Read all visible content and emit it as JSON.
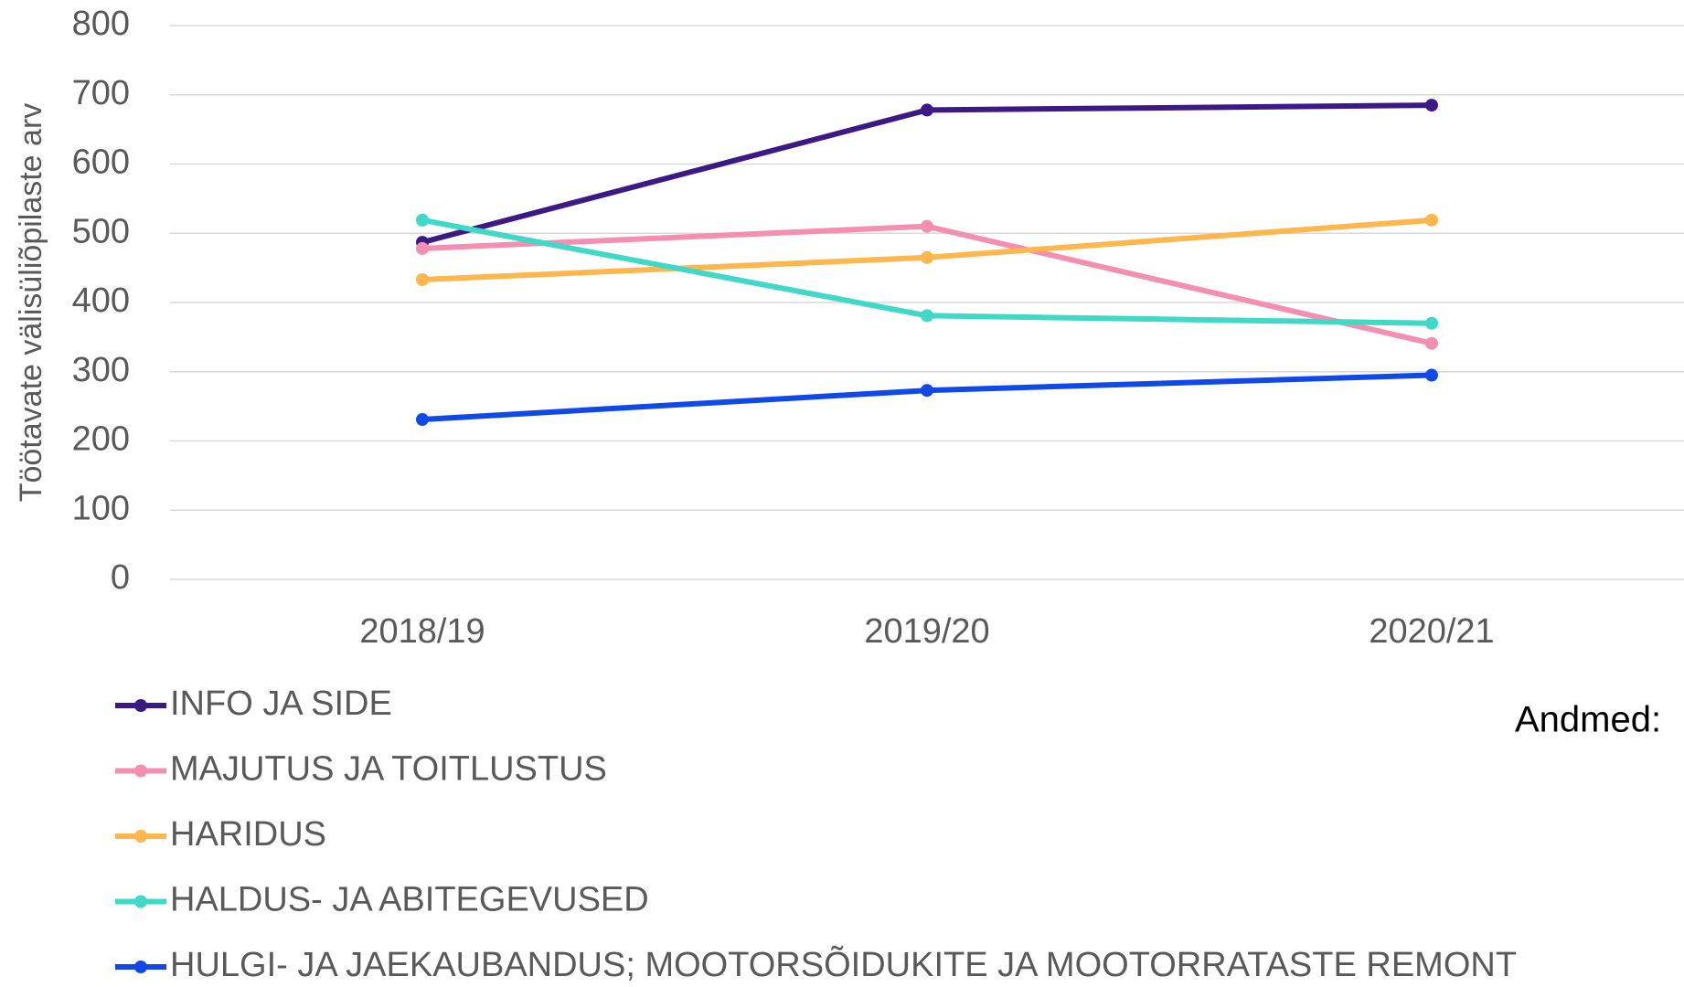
{
  "chart_data": {
    "type": "line",
    "ylabel": "Töötavate välisüliõpilaste arv",
    "categories": [
      "2018/19",
      "2019/20",
      "2020/21"
    ],
    "series": [
      {
        "name": "INFO JA SIDE",
        "color": "#3c1a86",
        "values": [
          487,
          678,
          685
        ]
      },
      {
        "name": "MAJUTUS JA TOITLUSTUS",
        "color": "#f48fb1",
        "values": [
          478,
          510,
          341
        ]
      },
      {
        "name": "HARIDUS",
        "color": "#ffb74d",
        "values": [
          433,
          465,
          519
        ]
      },
      {
        "name": "HALDUS- JA ABITEGEVUSED",
        "color": "#40d9c8",
        "values": [
          519,
          381,
          370
        ]
      },
      {
        "name": "HULGI- JA JAEKAUBANDUS; MOOTORSÕIDUKITE JA MOOTORRATASTE REMONT",
        "color": "#1049e8",
        "values": [
          231,
          273,
          295
        ]
      }
    ],
    "ylim": [
      0,
      800
    ],
    "yticks": [
      0,
      100,
      200,
      300,
      400,
      500,
      600,
      700,
      800
    ],
    "grid": true,
    "annotation": "Andmed:"
  }
}
